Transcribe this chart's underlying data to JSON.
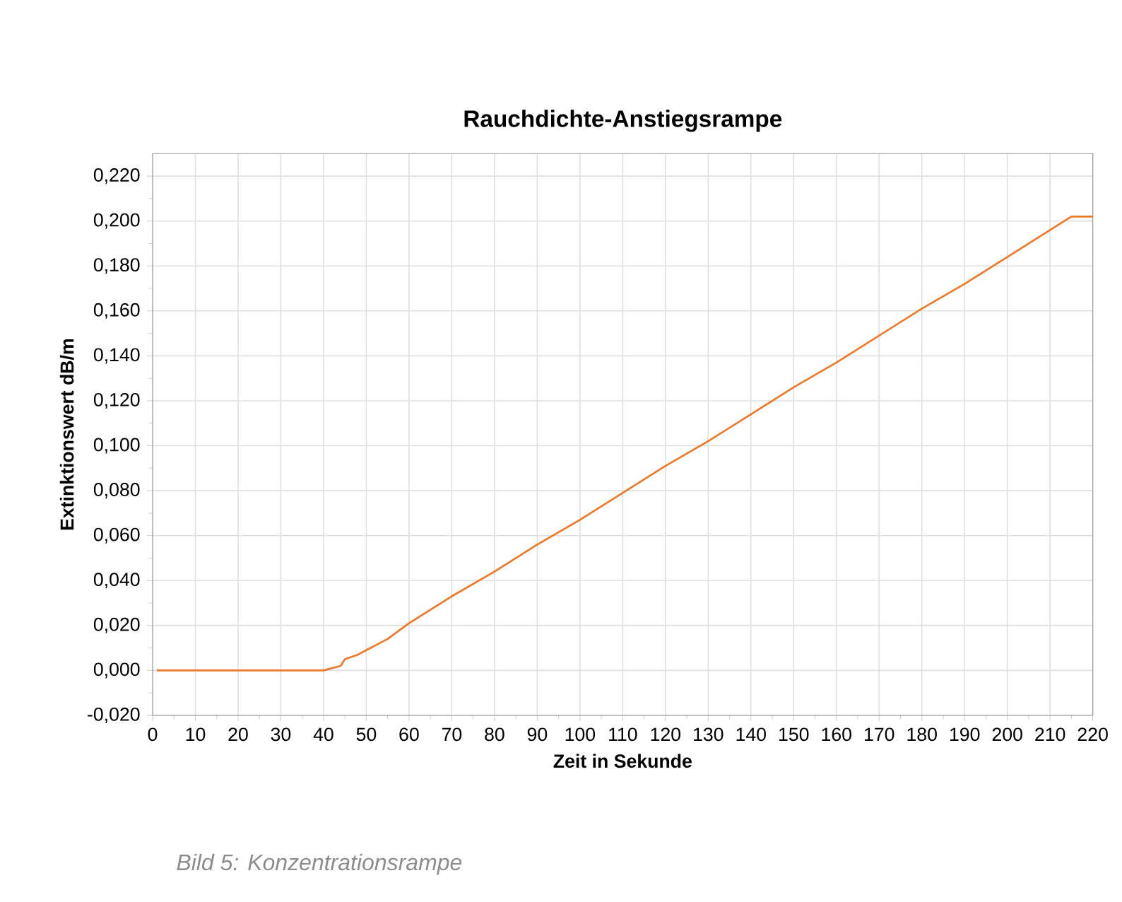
{
  "chart_data": {
    "type": "line",
    "title": "Rauchdichte-Anstiegsrampe",
    "xlabel": "Zeit in Sekunde",
    "ylabel": "Extinktionswert dB/m",
    "annotations": [
      "Bild 5: Konzentrationsrampe"
    ],
    "series": [
      {
        "color": "#f07828",
        "x": [
          1,
          40,
          42,
          44,
          45,
          48,
          50,
          55,
          60,
          70,
          80,
          90,
          100,
          110,
          120,
          130,
          140,
          150,
          160,
          170,
          180,
          190,
          200,
          210,
          215,
          220
        ],
        "values": [
          0,
          0,
          0.001,
          0.002,
          0.005,
          0.007,
          0.009,
          0.014,
          0.021,
          0.033,
          0.044,
          0.056,
          0.067,
          0.079,
          0.091,
          0.102,
          0.114,
          0.126,
          0.137,
          0.149,
          0.161,
          0.172,
          0.184,
          0.196,
          0.202,
          0.202
        ]
      }
    ],
    "xlim": [
      0,
      220
    ],
    "xticks": [
      0,
      10,
      20,
      30,
      40,
      50,
      60,
      70,
      80,
      90,
      100,
      110,
      120,
      130,
      140,
      150,
      160,
      170,
      180,
      190,
      200,
      210,
      220
    ],
    "ylim": [
      -0.02,
      0.23
    ],
    "yticks": [
      {
        "value": -0.02,
        "label": "-0,020"
      },
      {
        "value": 0,
        "label": "0,000"
      },
      {
        "value": 0.02,
        "label": "0,020"
      },
      {
        "value": 0.04,
        "label": "0,040"
      },
      {
        "value": 0.06,
        "label": "0,060"
      },
      {
        "value": 0.08,
        "label": "0,080"
      },
      {
        "value": 0.1,
        "label": "0,100"
      },
      {
        "value": 0.12,
        "label": "0,120"
      },
      {
        "value": 0.14,
        "label": "0,140"
      },
      {
        "value": 0.16,
        "label": "0,160"
      },
      {
        "value": 0.18,
        "label": "0,180"
      },
      {
        "value": 0.2,
        "label": "0,200"
      },
      {
        "value": 0.22,
        "label": "0,220"
      }
    ],
    "grid": true,
    "marker": "none",
    "line_style": "solid"
  }
}
